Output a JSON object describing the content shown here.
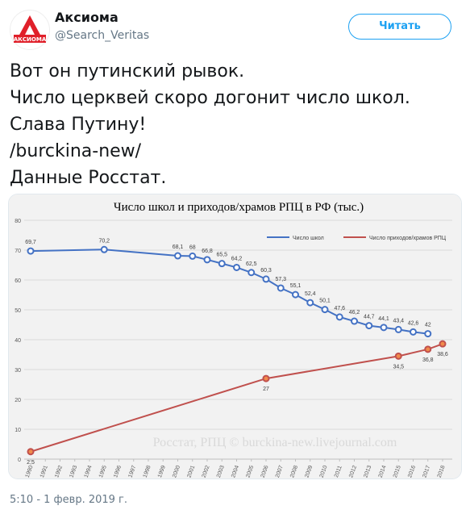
{
  "header": {
    "avatar_text": "АКСИОМА",
    "name": "Аксиома",
    "handle": "@Search_Veritas",
    "follow_button": "Читать"
  },
  "tweet": {
    "lines": [
      "Вот он путинский рывок.",
      "Число церквей скоро догонит число школ.",
      "Слава Путину!",
      "/burckina-new/",
      "Данные Росстат."
    ]
  },
  "chart_data": {
    "type": "line",
    "title": "Число школ и приходов/храмов РПЦ в РФ (тыс.)",
    "watermark": "Росстат, РПЦ © burckina-new.livejournal.com",
    "xlim": [
      1990,
      2018
    ],
    "xticks": [
      1990,
      1991,
      1992,
      1993,
      1994,
      1995,
      1996,
      1997,
      1998,
      1999,
      2000,
      2001,
      2002,
      2003,
      2004,
      2005,
      2006,
      2007,
      2008,
      2009,
      2010,
      2011,
      2012,
      2013,
      2014,
      2015,
      2016,
      2017,
      2018
    ],
    "ylim": [
      0,
      80
    ],
    "yticks": [
      0,
      10,
      20,
      30,
      40,
      50,
      60,
      70,
      80
    ],
    "grid": true,
    "legend": "top-right",
    "series": [
      {
        "name": "Число школ",
        "color": "#4472c4",
        "label_position": "above",
        "x": [
          1990,
          1995,
          2000,
          2001,
          2002,
          2003,
          2004,
          2005,
          2006,
          2007,
          2008,
          2009,
          2010,
          2011,
          2012,
          2013,
          2014,
          2015,
          2016,
          2017
        ],
        "values": [
          69.7,
          70.2,
          68.1,
          68,
          66.8,
          65.5,
          64.2,
          62.5,
          60.3,
          57.3,
          55.1,
          52.4,
          50.1,
          47.6,
          46.2,
          44.7,
          44.1,
          43.4,
          42.6,
          42
        ],
        "value_labels": [
          "69,7",
          "70,2",
          "68,1",
          "68",
          "66,8",
          "65,5",
          "64,2",
          "62,5",
          "60,3",
          "57,3",
          "55,1",
          "52,4",
          "50,1",
          "47,6",
          "46,2",
          "44,7",
          "44,1",
          "43,4",
          "42,6",
          "42"
        ]
      },
      {
        "name": "Число приходов/храмов РПЦ",
        "color": "#c0504d",
        "label_position": "below",
        "x": [
          1990,
          2006,
          2015,
          2017,
          2018
        ],
        "values": [
          2.5,
          27,
          34.5,
          36.8,
          38.6
        ],
        "value_labels": [
          "2,5",
          "27",
          "34,5",
          "36,8",
          "38,6"
        ]
      }
    ]
  },
  "footer": {
    "timestamp": "5:10 - 1 февр. 2019 г."
  }
}
